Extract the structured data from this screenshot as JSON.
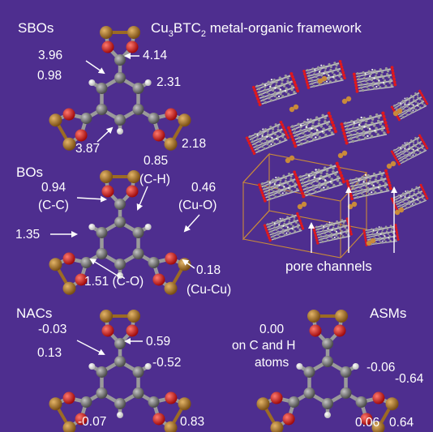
{
  "title": {
    "prefix": "Cu",
    "sub1": "3",
    "mid": "BTC",
    "sub2": "2",
    "suffix": " metal-organic framework"
  },
  "sections": {
    "sbo": {
      "label": "SBOs",
      "values": [
        "3.96",
        "4.14",
        "0.98",
        "2.31",
        "3.87",
        "2.18"
      ]
    },
    "bo": {
      "label": "BOs",
      "values": [
        "0.94",
        "(C-C)",
        "0.85",
        "(C-H)",
        "0.46",
        "(Cu-O)",
        "1.35",
        "1.51 (C-O)",
        "0.18",
        "(Cu-Cu)"
      ]
    },
    "nac": {
      "label": "NACs",
      "values": [
        "-0.03",
        "0.59",
        "0.13",
        "-0.52",
        "-0.07",
        "0.83"
      ]
    },
    "asm": {
      "label": "ASMs",
      "values": [
        "0.00",
        "on C and H",
        "atoms",
        "-0.06",
        "-0.64",
        "0.06",
        "0.64"
      ]
    }
  },
  "framework": {
    "pore_label": "pore channels"
  },
  "colors": {
    "background": "#4e2e8f",
    "copper": "#b07a2c",
    "oxygen": "#e0181c",
    "carbon": "#8a8a8a",
    "hydrogen": "#f2f2f2",
    "bond": "#9a9a9a"
  }
}
